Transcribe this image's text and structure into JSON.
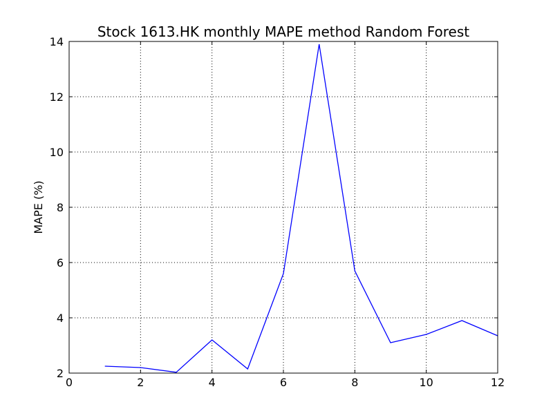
{
  "chart_data": {
    "type": "line",
    "title": "Stock 1613.HK monthly MAPE method Random Forest",
    "xlabel": "",
    "ylabel": "MAPE (%)",
    "xlim": [
      0,
      12
    ],
    "ylim": [
      2,
      14
    ],
    "xticks": [
      "0",
      "2",
      "4",
      "6",
      "8",
      "10",
      "12"
    ],
    "yticks": [
      "2",
      "4",
      "6",
      "8",
      "10",
      "12",
      "14"
    ],
    "grid": true,
    "series": [
      {
        "color": "#0000ff",
        "x": [
          1,
          2,
          3,
          4,
          5,
          6,
          7,
          8,
          9,
          10,
          11,
          12
        ],
        "y": [
          2.25,
          2.2,
          2.03,
          3.2,
          2.15,
          5.6,
          13.9,
          5.7,
          3.1,
          3.4,
          3.9,
          3.35
        ]
      }
    ]
  }
}
